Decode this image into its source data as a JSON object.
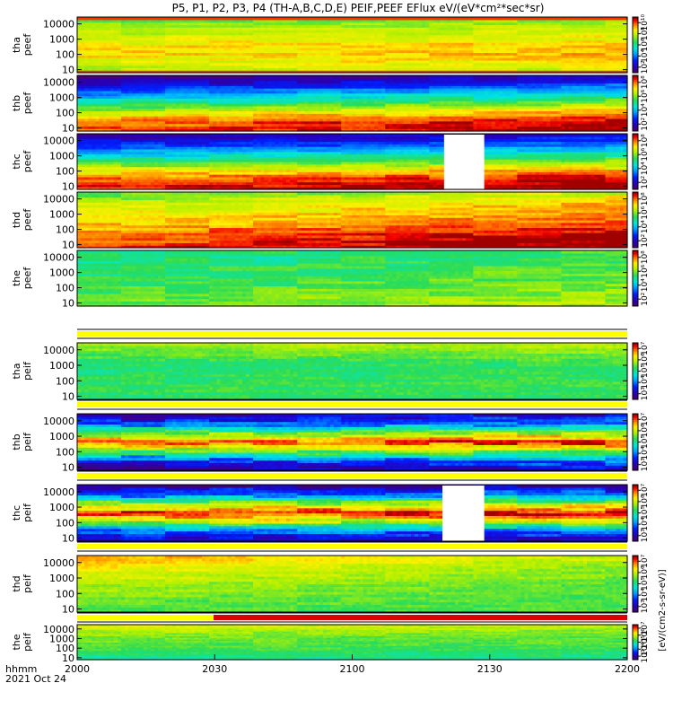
{
  "chart_data": {
    "type": "heatmap",
    "title": "P5, P1, P2, P3, P4 (TH-A,B,C,D,E) PEIF,PEEF EFlux eV/(eV*cm²*sec*sr)",
    "x_ticks": [
      "2000",
      "2030",
      "2100",
      "2130",
      "2200"
    ],
    "x_label_lines": [
      "hhmm",
      "2021 Oct 24"
    ],
    "y_ticks": [
      "10",
      "100",
      "1000",
      "10000"
    ],
    "y_scale": "log",
    "colorbar_label": "[eV/(cm2-s-sr-eV)]",
    "panels": [
      {
        "id": "tha-peef",
        "label": [
          "tha",
          "peef"
        ],
        "cbar_ticks": [
          "10²",
          "10⁴",
          "10⁶",
          "10⁸",
          "10¹⁰"
        ],
        "cmin": 1,
        "cmax": 10,
        "mode": "electron",
        "base": [
          7.2,
          7.8,
          8.3,
          8.1,
          7.6,
          7.1,
          6.6
        ],
        "drift": 0.2,
        "gap": null,
        "high_band": [
          9.3,
          9.5
        ]
      },
      {
        "id": "thb-peef",
        "label": [
          "thb",
          "peef"
        ],
        "cbar_ticks": [
          "10²",
          "10⁴",
          "10⁶",
          "10⁸"
        ],
        "cmin": 1,
        "cmax": 9,
        "mode": "electron",
        "base": [
          8.7,
          8.5,
          7.2,
          5.6,
          4.2,
          2.8,
          1.6
        ],
        "drift": 0.6,
        "gap": null,
        "high_band": null
      },
      {
        "id": "thc-peef",
        "label": [
          "thc",
          "peef"
        ],
        "cbar_ticks": [
          "10²",
          "10⁴",
          "10⁶",
          "10⁸"
        ],
        "cmin": 1,
        "cmax": 9,
        "mode": "electron",
        "base": [
          8.9,
          8.6,
          7.4,
          5.8,
          4.4,
          3.0,
          1.9
        ],
        "drift": 0.4,
        "gap": [
          0.667,
          0.74
        ],
        "high_band": null
      },
      {
        "id": "thd-peef",
        "label": [
          "thd",
          "peef"
        ],
        "cbar_ticks": [
          "10²",
          "10⁴",
          "10⁶",
          "10⁸"
        ],
        "cmin": 1,
        "cmax": 9,
        "mode": "electron",
        "base": [
          8.9,
          8.6,
          8.2,
          7.7,
          7.4,
          7.0,
          6.3
        ],
        "drift": 0.5,
        "gap": null,
        "high_band": null
      },
      {
        "id": "the-peef",
        "label": [
          "the",
          "peef"
        ],
        "cbar_ticks": [
          "10²",
          "10⁴",
          "10⁶",
          "10⁸"
        ],
        "cmin": 1,
        "cmax": 9,
        "mode": "electron",
        "base": [
          6.2,
          6.0,
          5.8,
          5.6,
          5.5,
          5.4,
          5.3
        ],
        "drift": 0.3,
        "gap": null,
        "high_band": null
      },
      {
        "id": "tha-peif",
        "label": [
          "tha",
          "peif"
        ],
        "cbar_ticks": [
          "10³",
          "10⁴",
          "10⁵",
          "10⁶",
          "10⁷"
        ],
        "cmin": 2.5,
        "cmax": 7.5,
        "mode": "ion-flat",
        "base": [
          5.2,
          5.3,
          5.3,
          5.2,
          5.3,
          5.6,
          5.9
        ],
        "drift": 0.1,
        "gap": null,
        "high_band": null
      },
      {
        "id": "thb-peif",
        "label": [
          "thb",
          "peif"
        ],
        "cbar_ticks": [
          "10³",
          "10⁴",
          "10⁵",
          "10⁶",
          "10⁷"
        ],
        "cmin": 2.5,
        "cmax": 7.5,
        "mode": "ion-peak",
        "base": [
          3.0,
          3.8,
          5.6,
          7.1,
          5.8,
          4.0,
          3.1
        ],
        "drift": 0.2,
        "gap": null,
        "high_band": null
      },
      {
        "id": "thc-peif",
        "label": [
          "thc",
          "peif"
        ],
        "cbar_ticks": [
          "10³",
          "10⁴",
          "10⁵",
          "10⁶",
          "10⁷"
        ],
        "cmin": 2.5,
        "cmax": 7.5,
        "mode": "ion-peak",
        "base": [
          3.1,
          3.9,
          5.8,
          7.3,
          6.0,
          4.1,
          3.0
        ],
        "drift": 0.1,
        "gap": [
          0.664,
          0.74
        ],
        "high_band": null
      },
      {
        "id": "thd-peif",
        "label": [
          "thd",
          "peif"
        ],
        "cbar_ticks": [
          "10³",
          "10⁴",
          "10⁵",
          "10⁶",
          "10⁷"
        ],
        "cmin": 2.5,
        "cmax": 7.5,
        "mode": "ion-flat",
        "base": [
          5.4,
          5.5,
          5.6,
          5.7,
          5.9,
          6.1,
          6.4
        ],
        "drift": -0.4,
        "gap": null,
        "high_band": null
      },
      {
        "id": "the-peif",
        "label": [
          "the",
          "peif"
        ],
        "cbar_ticks": [
          "10³",
          "10⁴",
          "10⁵",
          "10⁶",
          "10⁷"
        ],
        "cmin": 2.5,
        "cmax": 7.5,
        "mode": "ion-flat",
        "base": [
          5.0,
          5.2,
          5.4,
          5.5,
          5.6,
          5.8,
          6.1
        ],
        "drift": -0.1,
        "gap": null,
        "high_band": null
      }
    ],
    "strips": [
      {
        "id": "strip-tha",
        "segments": [
          {
            "from": 0,
            "to": 1,
            "color": "#ffff00"
          }
        ]
      },
      {
        "id": "strip-thb",
        "segments": [
          {
            "from": 0,
            "to": 1,
            "color": "#ffff00"
          }
        ]
      },
      {
        "id": "strip-thc",
        "segments": [
          {
            "from": 0,
            "to": 1,
            "color": "#ffff00"
          }
        ]
      },
      {
        "id": "strip-thd",
        "segments": [
          {
            "from": 0,
            "to": 1,
            "color": "#ffff00"
          }
        ]
      },
      {
        "id": "strip-the",
        "segments": [
          {
            "from": 0,
            "to": 0.248,
            "color": "#ffff00"
          },
          {
            "from": 0.248,
            "to": 1,
            "color": "#dd0000"
          }
        ]
      }
    ]
  }
}
